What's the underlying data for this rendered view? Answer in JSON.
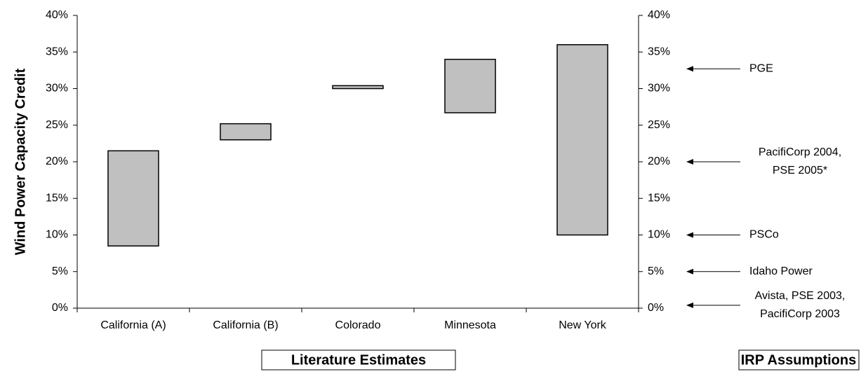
{
  "chart_data": {
    "type": "range-bar",
    "y_label": "Wind Power Capacity Credit",
    "categories": [
      "California (A)",
      "California (B)",
      "Colorado",
      "Minnesota",
      "New York"
    ],
    "low": [
      8.5,
      23,
      30,
      26.7,
      10
    ],
    "high": [
      21.5,
      25.2,
      30.4,
      34,
      36
    ],
    "color": "#c0c0c0",
    "ylim": [
      0,
      40
    ],
    "yticks": [
      {
        "value": 0,
        "label": "0%"
      },
      {
        "value": 5,
        "label": "5%"
      },
      {
        "value": 10,
        "label": "10%"
      },
      {
        "value": 15,
        "label": "15%"
      },
      {
        "value": 20,
        "label": "20%"
      },
      {
        "value": 25,
        "label": "25%"
      },
      {
        "value": 30,
        "label": "30%"
      },
      {
        "value": 35,
        "label": "35%"
      },
      {
        "value": 40,
        "label": "40%"
      }
    ],
    "y2lim": [
      0,
      40
    ],
    "y2ticks": [
      {
        "value": 0,
        "label": "0%"
      },
      {
        "value": 5,
        "label": "5%"
      },
      {
        "value": 10,
        "label": "10%"
      },
      {
        "value": 15,
        "label": "15%"
      },
      {
        "value": 20,
        "label": "20%"
      },
      {
        "value": 25,
        "label": "25%"
      },
      {
        "value": 30,
        "label": "30%"
      },
      {
        "value": 35,
        "label": "35%"
      },
      {
        "value": 40,
        "label": "40%"
      }
    ],
    "annotations": [
      {
        "value": 32.7,
        "lines": [
          "PGE"
        ]
      },
      {
        "value": 20,
        "lines": [
          "PacifiCorp 2004,",
          "PSE 2005*"
        ]
      },
      {
        "value": 10,
        "lines": [
          "PSCo"
        ]
      },
      {
        "value": 5,
        "lines": [
          "Idaho Power"
        ]
      },
      {
        "value": 0.4,
        "lines": [
          "Avista, PSE 2003,",
          "PacifiCorp 2003"
        ]
      }
    ],
    "group_labels": [
      "Literature Estimates",
      "IRP Assumptions"
    ]
  }
}
